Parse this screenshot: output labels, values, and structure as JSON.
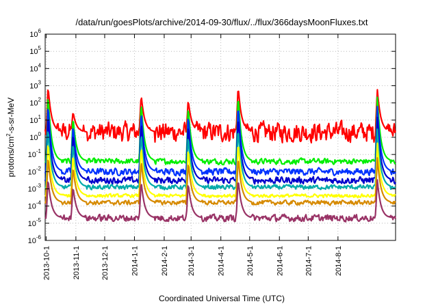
{
  "chart_data": {
    "type": "line",
    "title": "/data/run/goesPlots/archive/2014-09-30/flux/../flux/366daysMoonFluxes.txt",
    "xlabel": "Coordinated Universal Time (UTC)",
    "ylabel_base": "protons/cm",
    "ylabel_exp": "2",
    "ylabel_tail": "-s-sr-MeV",
    "yscale": "log",
    "ylim_exp": [
      -6,
      6
    ],
    "y_ticks": [
      {
        "base": "10",
        "exp": "-6"
      },
      {
        "base": "10",
        "exp": "-5"
      },
      {
        "base": "10",
        "exp": "-4"
      },
      {
        "base": "10",
        "exp": "-3"
      },
      {
        "base": "10",
        "exp": "-2"
      },
      {
        "base": "10",
        "exp": "-1"
      },
      {
        "base": "10",
        "exp": "0"
      },
      {
        "base": "10",
        "exp": "1"
      },
      {
        "base": "10",
        "exp": "2"
      },
      {
        "base": "10",
        "exp": "3"
      },
      {
        "base": "10",
        "exp": "4"
      },
      {
        "base": "10",
        "exp": "5"
      },
      {
        "base": "10",
        "exp": "6"
      }
    ],
    "xlim": [
      "2013-09-30",
      "2014-09-30"
    ],
    "x_ticks": [
      "2013-10-1",
      "2013-11-1",
      "2013-12-1",
      "2014-1-1",
      "2014-2-1",
      "2014-3-1",
      "2014-4-1",
      "2014-5-1",
      "2014-6-1",
      "2014-7-1",
      "2014-8-1"
    ],
    "grid": true,
    "legend": "none",
    "series": [
      {
        "color": "#ff0000",
        "base_exp": 0.3,
        "noise": 0.35
      },
      {
        "color": "#00ee00",
        "base_exp": -1.4,
        "noise": 0.1
      },
      {
        "color": "#0033ff",
        "base_exp": -2.0,
        "noise": 0.12
      },
      {
        "color": "#0000cc",
        "base_exp": -2.5,
        "noise": 0.12
      },
      {
        "color": "#00aaaa",
        "base_exp": -2.9,
        "noise": 0.08
      },
      {
        "color": "#ffff00",
        "base_exp": -3.4,
        "noise": 0.06
      },
      {
        "color": "#d68a00",
        "base_exp": -3.8,
        "noise": 0.08
      },
      {
        "color": "#993366",
        "base_exp": -4.7,
        "noise": 0.12
      }
    ],
    "events": [
      {
        "date": "2013-10-03",
        "peak_exp": 3.0
      },
      {
        "date": "2013-10-29",
        "peak_exp": 1.5
      },
      {
        "date": "2014-01-08",
        "peak_exp": 2.5
      },
      {
        "date": "2014-02-26",
        "peak_exp": 2.2
      },
      {
        "date": "2014-04-19",
        "peak_exp": 3.0
      },
      {
        "date": "2014-09-11",
        "peak_exp": 2.8
      }
    ]
  }
}
